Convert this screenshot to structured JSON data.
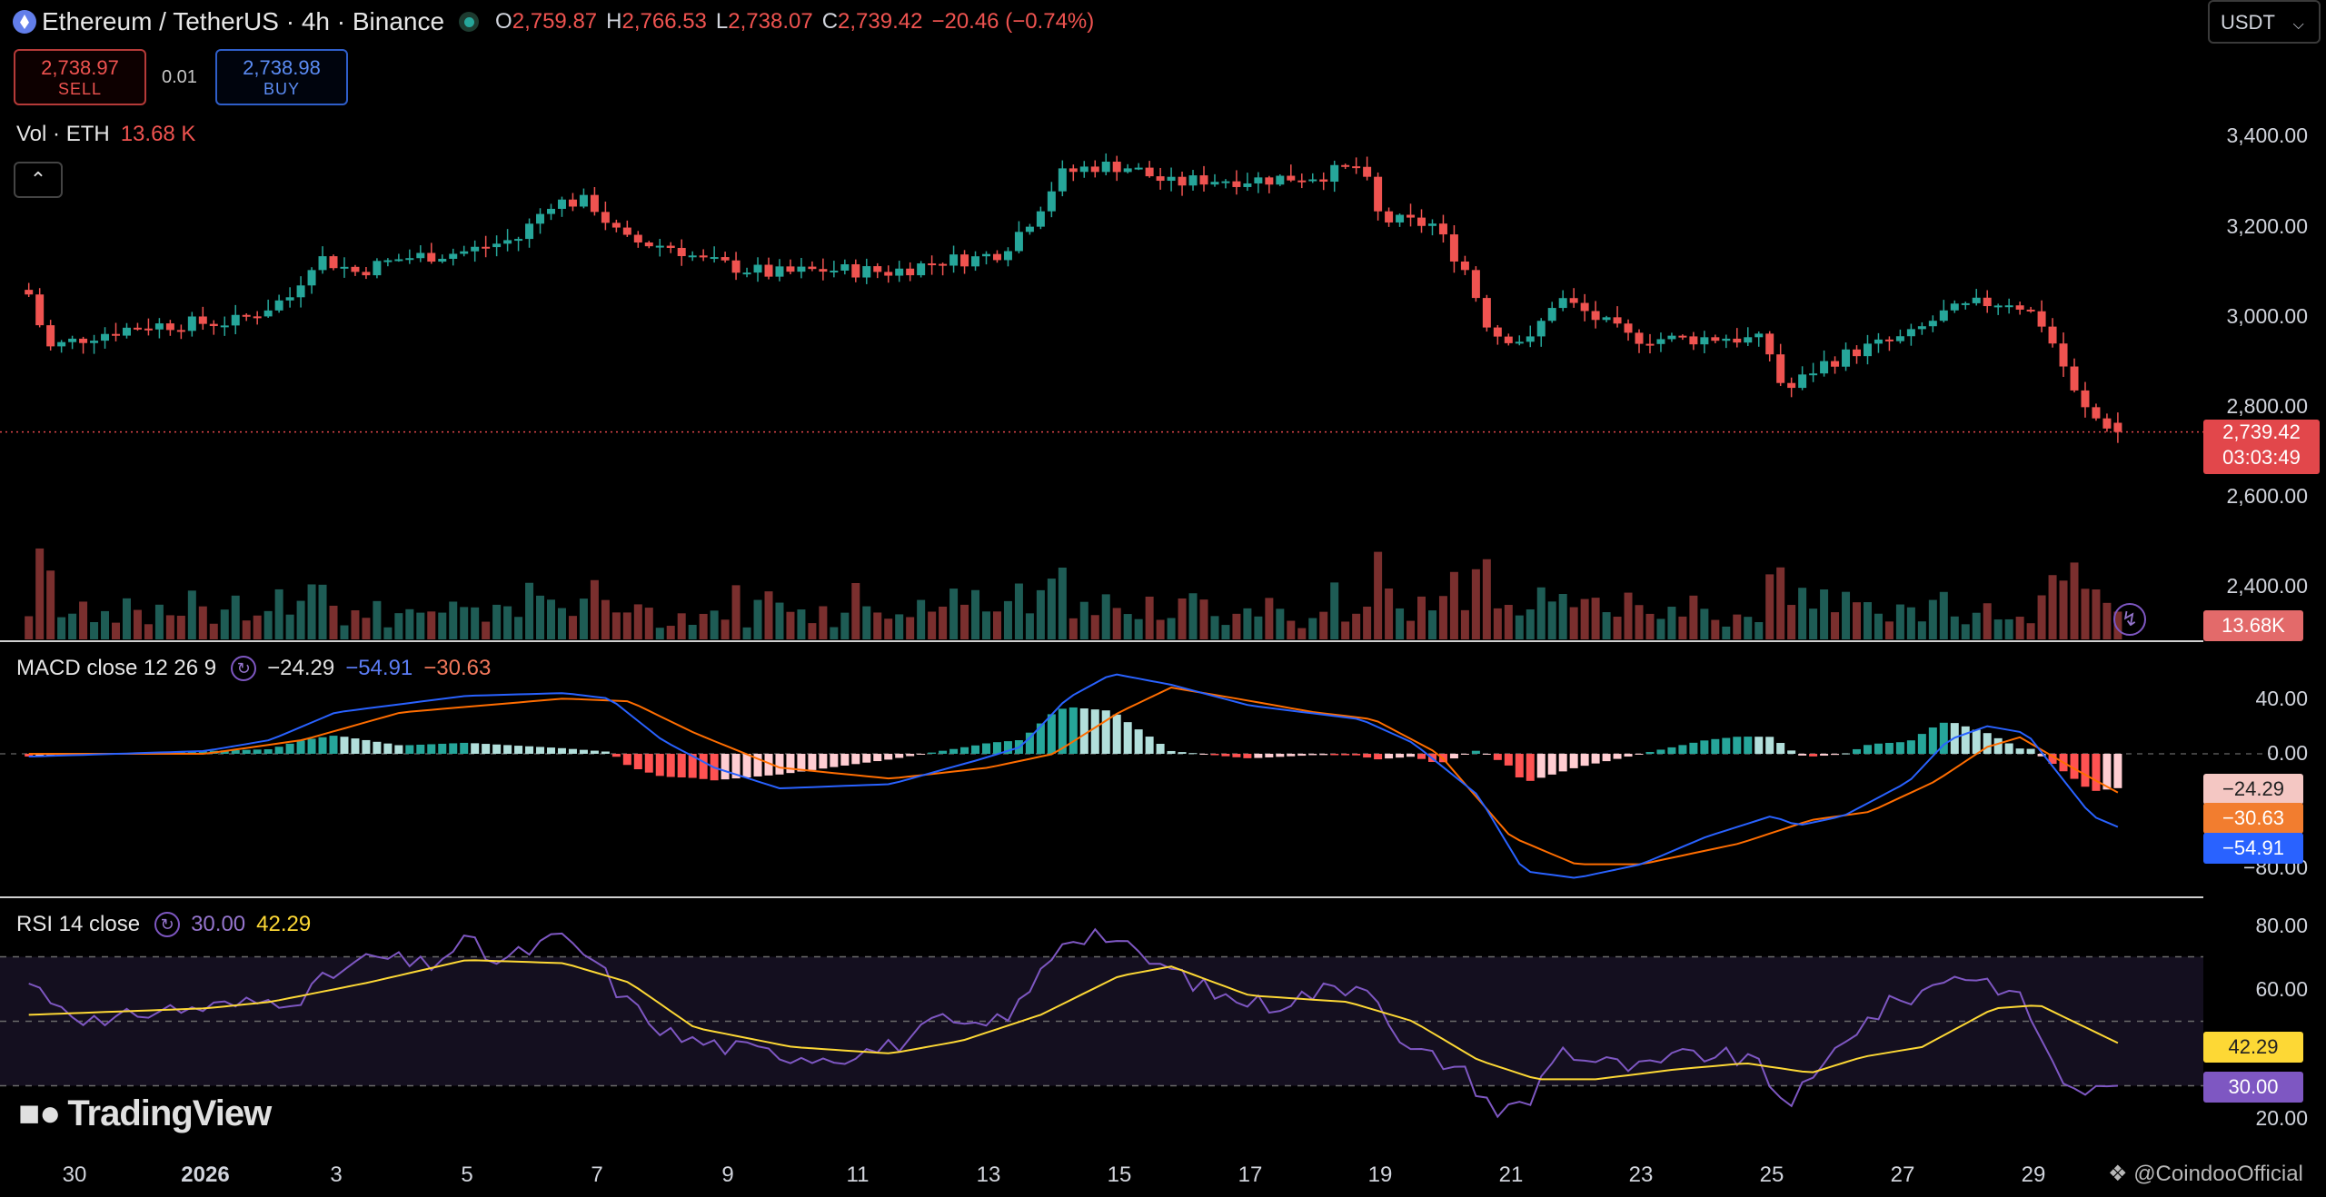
{
  "header": {
    "symbol": "Ethereum / TetherUS · 4h · Binance",
    "o_key": "O",
    "o_val": "2,759.87",
    "h_key": "H",
    "h_val": "2,766.53",
    "l_key": "L",
    "l_val": "2,738.07",
    "c_key": "C",
    "c_val": "2,739.42",
    "change": "−20.46 (−0.74%)"
  },
  "trade": {
    "sell_price": "2,738.97",
    "sell_label": "SELL",
    "spread": "0.01",
    "buy_price": "2,738.98",
    "buy_label": "BUY"
  },
  "volume_legend": {
    "name": "Vol · ETH",
    "value": "13.68 K"
  },
  "collapse_icon": "chevron-up-icon",
  "currency_select": "USDT",
  "price_axis": [
    "3,400.00",
    "3,200.00",
    "3,000.00",
    "2,800.00",
    "2,600.00",
    "2,400.00"
  ],
  "price_tag": {
    "price": "2,739.42",
    "countdown": "03:03:49"
  },
  "volume_tag": "13.68K",
  "macd": {
    "title": "MACD close 12 26 9",
    "hist": "−24.29",
    "macd": "−54.91",
    "signal": "−30.63",
    "axis": [
      "40.00",
      "0.00",
      "−80.00"
    ],
    "tags": {
      "hist": "−24.29",
      "signal": "−30.63",
      "macd": "−54.91"
    }
  },
  "rsi": {
    "title": "RSI 14 close",
    "rsi": "30.00",
    "ma": "42.29",
    "axis": [
      "80.00",
      "60.00",
      "20.00"
    ],
    "tags": {
      "ma": "42.29",
      "rsi": "30.00"
    }
  },
  "time_axis": [
    "30",
    "2026",
    "3",
    "5",
    "7",
    "9",
    "11",
    "13",
    "15",
    "17",
    "19",
    "21",
    "23",
    "25",
    "27",
    "29"
  ],
  "branding": {
    "logo": "TradingView",
    "watermark": "@CoindooOfficial"
  },
  "colors": {
    "up": "#26a69a",
    "down": "#ef5350",
    "macd": "#2962ff",
    "signal": "#ff6d00",
    "rsi": "#7e57c2",
    "rsi_ma": "#fdd835"
  },
  "chart_data": {
    "type": "candlestick",
    "x_unit": "days (4h candles)",
    "price_range": [
      2280,
      3520
    ],
    "price_close_anchors": [
      [
        29.3,
        3045
      ],
      [
        29.6,
        2925
      ],
      [
        30.3,
        2955
      ],
      [
        31.0,
        2975
      ],
      [
        1.5,
        2985
      ],
      [
        2.3,
        3040
      ],
      [
        2.7,
        3130
      ],
      [
        3.3,
        3095
      ],
      [
        4.0,
        3125
      ],
      [
        5.0,
        3140
      ],
      [
        5.8,
        3170
      ],
      [
        6.3,
        3250
      ],
      [
        6.9,
        3250
      ],
      [
        7.4,
        3165
      ],
      [
        8.2,
        3150
      ],
      [
        8.6,
        3120
      ],
      [
        9.7,
        3090
      ],
      [
        10.5,
        3100
      ],
      [
        11.5,
        3095
      ],
      [
        12.3,
        3120
      ],
      [
        12.8,
        3125
      ],
      [
        13.2,
        3140
      ],
      [
        13.7,
        3220
      ],
      [
        14.1,
        3310
      ],
      [
        14.6,
        3330
      ],
      [
        15.1,
        3330
      ],
      [
        15.8,
        3290
      ],
      [
        16.3,
        3300
      ],
      [
        17.2,
        3300
      ],
      [
        18.1,
        3310
      ],
      [
        18.7,
        3330
      ],
      [
        19.0,
        3210
      ],
      [
        19.8,
        3200
      ],
      [
        20.3,
        3100
      ],
      [
        20.7,
        2960
      ],
      [
        21.3,
        2940
      ],
      [
        21.7,
        3040
      ],
      [
        22.2,
        3000
      ],
      [
        22.8,
        2950
      ],
      [
        23.5,
        2945
      ],
      [
        24.3,
        2950
      ],
      [
        24.9,
        2940
      ],
      [
        25.2,
        2825
      ],
      [
        25.7,
        2885
      ],
      [
        26.3,
        2920
      ],
      [
        27.1,
        2950
      ],
      [
        27.6,
        3000
      ],
      [
        28.2,
        3025
      ],
      [
        28.7,
        3030
      ],
      [
        29.1,
        2990
      ],
      [
        29.4,
        2910
      ],
      [
        29.7,
        2800
      ],
      [
        30.0,
        2765
      ],
      [
        30.4,
        2739.42
      ]
    ],
    "volume_range_k": [
      0,
      60
    ],
    "macd_range": [
      -95,
      65
    ],
    "macd_anchors": [
      [
        29.3,
        -2
      ],
      [
        1.0,
        2
      ],
      [
        2.0,
        10
      ],
      [
        3.0,
        30
      ],
      [
        5.0,
        42
      ],
      [
        6.5,
        44
      ],
      [
        7.2,
        40
      ],
      [
        8.0,
        10
      ],
      [
        8.8,
        -10
      ],
      [
        9.8,
        -25
      ],
      [
        11.5,
        -22
      ],
      [
        12.8,
        -5
      ],
      [
        13.5,
        5
      ],
      [
        14.2,
        40
      ],
      [
        14.9,
        58
      ],
      [
        15.8,
        50
      ],
      [
        17.0,
        35
      ],
      [
        18.7,
        25
      ],
      [
        19.5,
        8
      ],
      [
        20.5,
        -30
      ],
      [
        21.2,
        -85
      ],
      [
        22.0,
        -90
      ],
      [
        23.0,
        -80
      ],
      [
        24.0,
        -60
      ],
      [
        25.0,
        -45
      ],
      [
        25.4,
        -52
      ],
      [
        26.1,
        -45
      ],
      [
        27.1,
        -20
      ],
      [
        27.7,
        10
      ],
      [
        28.3,
        20
      ],
      [
        28.9,
        15
      ],
      [
        29.4,
        -15
      ],
      [
        29.9,
        -45
      ],
      [
        30.4,
        -54.91
      ]
    ],
    "signal_anchors": [
      [
        29.3,
        0
      ],
      [
        1.0,
        0
      ],
      [
        2.5,
        10
      ],
      [
        4.0,
        30
      ],
      [
        6.5,
        40
      ],
      [
        7.5,
        38
      ],
      [
        8.5,
        15
      ],
      [
        9.8,
        -10
      ],
      [
        11.5,
        -18
      ],
      [
        13.0,
        -10
      ],
      [
        14.0,
        0
      ],
      [
        15.0,
        30
      ],
      [
        15.8,
        48
      ],
      [
        16.8,
        40
      ],
      [
        18.0,
        30
      ],
      [
        18.9,
        25
      ],
      [
        19.9,
        0
      ],
      [
        21.0,
        -60
      ],
      [
        22.0,
        -80
      ],
      [
        23.0,
        -80
      ],
      [
        24.5,
        -65
      ],
      [
        25.6,
        -48
      ],
      [
        26.5,
        -42
      ],
      [
        27.5,
        -20
      ],
      [
        28.3,
        5
      ],
      [
        28.8,
        12
      ],
      [
        29.6,
        -10
      ],
      [
        30.4,
        -30.63
      ]
    ],
    "rsi_range": [
      10,
      90
    ],
    "rsi_levels": [
      70,
      50,
      30
    ],
    "rsi_anchors": [
      [
        29.3,
        62
      ],
      [
        29.8,
        55
      ],
      [
        30.5,
        48
      ],
      [
        31.0,
        53
      ],
      [
        1.5,
        55
      ],
      [
        2.5,
        58
      ],
      [
        3.0,
        65
      ],
      [
        3.6,
        70
      ],
      [
        4.4,
        67
      ],
      [
        5.0,
        75
      ],
      [
        5.5,
        68
      ],
      [
        6.4,
        76
      ],
      [
        6.9,
        70
      ],
      [
        7.5,
        55
      ],
      [
        8.2,
        45
      ],
      [
        9.0,
        42
      ],
      [
        9.7,
        40
      ],
      [
        10.6,
        39
      ],
      [
        11.5,
        42
      ],
      [
        12.3,
        50
      ],
      [
        12.8,
        47
      ],
      [
        13.5,
        55
      ],
      [
        14.1,
        75
      ],
      [
        14.7,
        78
      ],
      [
        15.3,
        70
      ],
      [
        15.9,
        65
      ],
      [
        16.5,
        58
      ],
      [
        17.3,
        55
      ],
      [
        18.2,
        60
      ],
      [
        18.9,
        62
      ],
      [
        19.3,
        42
      ],
      [
        20.2,
        36
      ],
      [
        20.8,
        22
      ],
      [
        21.3,
        25
      ],
      [
        21.7,
        42
      ],
      [
        22.2,
        38
      ],
      [
        23.0,
        35
      ],
      [
        23.8,
        40
      ],
      [
        24.7,
        38
      ],
      [
        25.2,
        25
      ],
      [
        25.6,
        30
      ],
      [
        26.1,
        45
      ],
      [
        26.8,
        55
      ],
      [
        27.4,
        60
      ],
      [
        27.8,
        65
      ],
      [
        28.4,
        62
      ],
      [
        28.9,
        55
      ],
      [
        29.4,
        32
      ],
      [
        29.9,
        28
      ],
      [
        30.4,
        30
      ]
    ],
    "rsi_ma_anchors": [
      [
        29.3,
        52
      ],
      [
        1.0,
        54
      ],
      [
        2.0,
        56
      ],
      [
        3.5,
        62
      ],
      [
        5.0,
        69
      ],
      [
        6.5,
        68
      ],
      [
        7.5,
        62
      ],
      [
        8.5,
        48
      ],
      [
        10.0,
        42
      ],
      [
        11.5,
        40
      ],
      [
        12.6,
        44
      ],
      [
        13.8,
        52
      ],
      [
        15.0,
        64
      ],
      [
        15.8,
        67
      ],
      [
        17.0,
        58
      ],
      [
        18.5,
        56
      ],
      [
        19.5,
        50
      ],
      [
        20.5,
        38
      ],
      [
        21.4,
        32
      ],
      [
        22.3,
        32
      ],
      [
        23.5,
        35
      ],
      [
        24.6,
        37
      ],
      [
        25.6,
        34
      ],
      [
        26.4,
        39
      ],
      [
        27.3,
        42
      ],
      [
        28.4,
        54
      ],
      [
        29.1,
        55
      ],
      [
        30.4,
        42.29
      ]
    ]
  }
}
